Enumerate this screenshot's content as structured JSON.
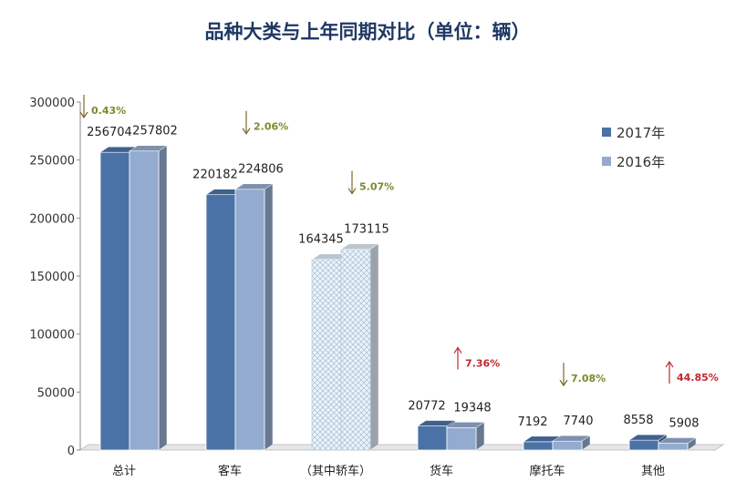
{
  "chart_data": {
    "type": "bar",
    "title": "品种大类与上年同期对比（单位：辆）",
    "categories": [
      "总计",
      "客车",
      "（其中轿车）",
      "货车",
      "摩托车",
      "其他"
    ],
    "series": [
      {
        "name": "2017年",
        "values": [
          256704,
          220182,
          164345,
          20772,
          7192,
          8558
        ]
      },
      {
        "name": "2016年",
        "values": [
          257802,
          224806,
          173115,
          19348,
          7740,
          5908
        ]
      }
    ],
    "changes": [
      {
        "text": "0.43%",
        "direction": "down"
      },
      {
        "text": "2.06%",
        "direction": "down"
      },
      {
        "text": "5.07%",
        "direction": "down"
      },
      {
        "text": "7.36%",
        "direction": "up"
      },
      {
        "text": "7.08%",
        "direction": "down"
      },
      {
        "text": "44.85%",
        "direction": "up"
      }
    ],
    "ylim": [
      0,
      300000
    ],
    "yticks": [
      0,
      50000,
      100000,
      150000,
      200000,
      250000,
      300000
    ],
    "grid": false,
    "legend": "right",
    "colors": {
      "series_2017": "#4a72a6",
      "series_2016": "#93abce",
      "sedan_bars": "#dde8f1",
      "down_change": "#7b8a2a",
      "up_change": "#c0282e",
      "title": "#1f3864",
      "axis": "#888888"
    }
  }
}
